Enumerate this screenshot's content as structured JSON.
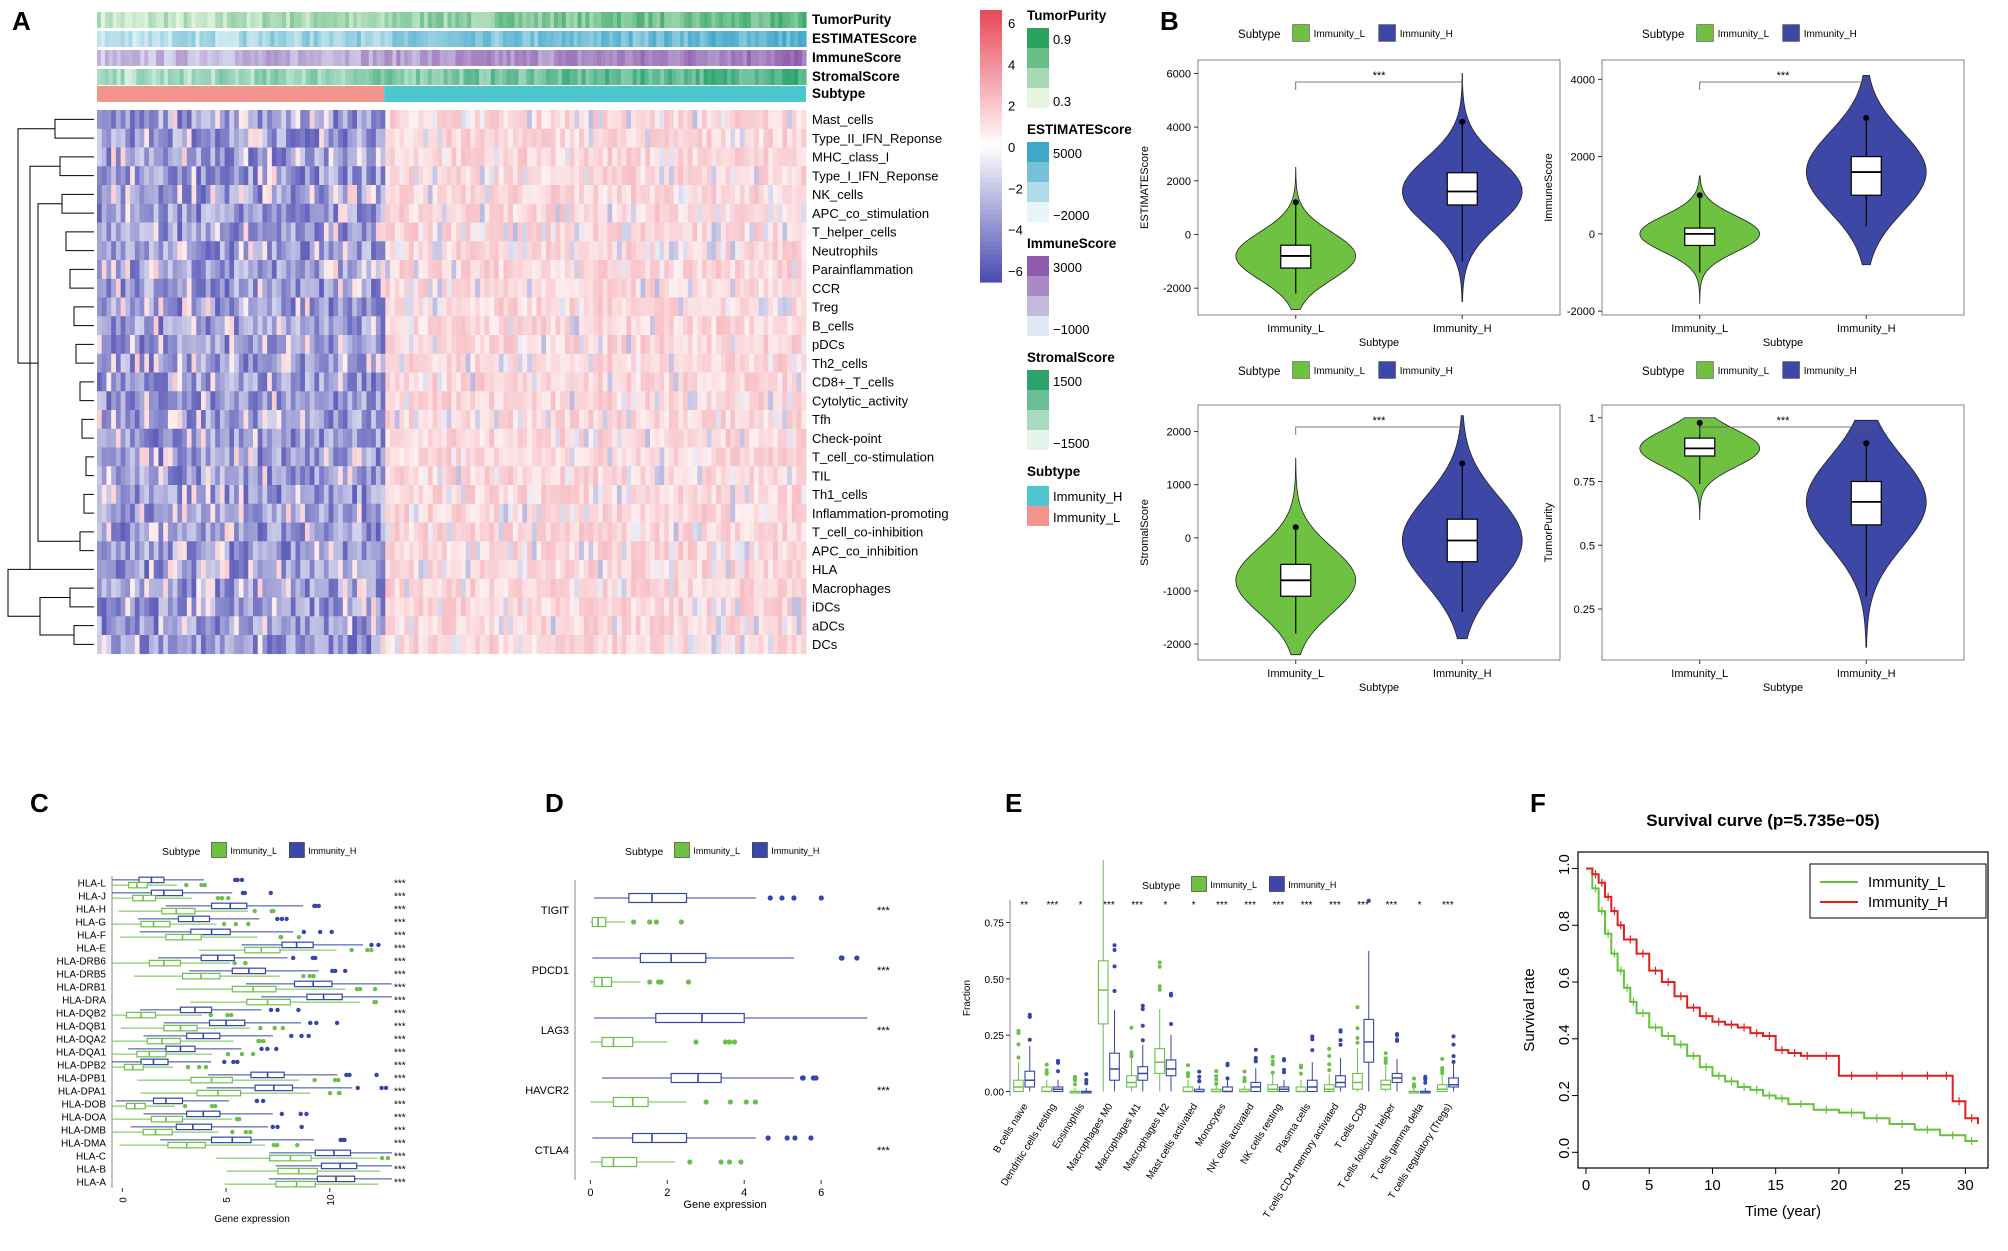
{
  "panels": {
    "A": "A",
    "B": "B",
    "C": "C",
    "D": "D",
    "E": "E",
    "F": "F"
  },
  "colors": {
    "low": "#4d4db3",
    "high": "#e84a5a",
    "immunity_L": "#6cc04a",
    "immunity_H": "#3646a8",
    "green_fill": "#6fc241",
    "blue_fill": "#3c47a6",
    "surv_L": "#66c23a",
    "surv_H": "#e02020"
  },
  "chart_data": [
    {
      "panel": "A",
      "type": "heatmap",
      "annotation_tracks": [
        "TumorPurity",
        "ESTIMATEScore",
        "ImmuneScore",
        "StromalScore",
        "Subtype"
      ],
      "rows": [
        "Mast_cells",
        "Type_II_IFN_Reponse",
        "MHC_class_I",
        "Type_I_IFN_Reponse",
        "NK_cells",
        "APC_co_stimulation",
        "T_helper_cells",
        "Neutrophils",
        "Parainflammation",
        "CCR",
        "Treg",
        "B_cells",
        "pDCs",
        "Th2_cells",
        "CD8+_T_cells",
        "Cytolytic_activity",
        "Tfh",
        "Check-point",
        "T_cell_co-stimulation",
        "TIL",
        "Th1_cells",
        "Inflammation-promoting",
        "T_cell_co-inhibition",
        "APC_co_inhibition",
        "HLA",
        "Macrophages",
        "iDCs",
        "aDCs",
        "DCs"
      ],
      "color_scale": {
        "ticks": [
          "6",
          "4",
          "2",
          "0",
          "−2",
          "−4",
          "−6"
        ],
        "range": [
          -6,
          6
        ]
      },
      "legends": [
        {
          "title": "TumorPurity",
          "labels": [
            "0.9",
            "0.3"
          ]
        },
        {
          "title": "ESTIMATEScore",
          "labels": [
            "5000",
            "−2000"
          ]
        },
        {
          "title": "ImmuneScore",
          "labels": [
            "3000",
            "−1000"
          ]
        },
        {
          "title": "StromalScore",
          "labels": [
            "1500",
            "−1500"
          ]
        },
        {
          "title": "Subtype",
          "labels": [
            "Immunity_H",
            "Immunity_L"
          ]
        }
      ],
      "group_split_fraction": 0.405
    },
    {
      "panel": "B",
      "type": "violin",
      "legend_title": "Subtype",
      "legend_items": [
        "Immunity_L",
        "Immunity_H"
      ],
      "xlabel": "Subtype",
      "categories": [
        "Immunity_L",
        "Immunity_H"
      ],
      "significance": "***",
      "subplots": [
        {
          "ylabel": "ESTIMATEScore",
          "ylim": [
            -3000,
            6500
          ],
          "yticks": [
            -2000,
            0,
            2000,
            4000,
            6000
          ],
          "groups": [
            {
              "q1": -1250,
              "median": -800,
              "q3": -400,
              "wlo": -2200,
              "whi": 1200,
              "vmin": -2800,
              "vmax": 2500
            },
            {
              "q1": 1100,
              "median": 1600,
              "q3": 2300,
              "wlo": -1000,
              "whi": 4200,
              "vmax": 6000,
              "vmin": -2500
            }
          ]
        },
        {
          "ylabel": "ImmuneScore",
          "ylim": [
            -2100,
            4500
          ],
          "yticks": [
            -2000,
            0,
            2000,
            4000
          ],
          "groups": [
            {
              "q1": -300,
              "median": 0,
              "q3": 150,
              "wlo": -1000,
              "whi": 1000,
              "vmin": -1800,
              "vmax": 1500
            },
            {
              "q1": 1000,
              "median": 1600,
              "q3": 2000,
              "wlo": 200,
              "whi": 3000,
              "vmin": -800,
              "vmax": 4100
            }
          ]
        },
        {
          "ylabel": "StromalScore",
          "ylim": [
            -2300,
            2500
          ],
          "yticks": [
            -2000,
            -1000,
            0,
            1000,
            2000
          ],
          "groups": [
            {
              "q1": -1100,
              "median": -800,
              "q3": -500,
              "wlo": -1800,
              "whi": 200,
              "vmin": -2200,
              "vmax": 1500
            },
            {
              "q1": -450,
              "median": -50,
              "q3": 350,
              "wlo": -1400,
              "whi": 1400,
              "vmin": -1900,
              "vmax": 2300
            }
          ]
        },
        {
          "ylabel": "TumorPurity",
          "ylim": [
            0.05,
            1.05
          ],
          "yticks": [
            0.25,
            0.5,
            0.75,
            1.0
          ],
          "groups": [
            {
              "q1": 0.85,
              "median": 0.88,
              "q3": 0.92,
              "wlo": 0.74,
              "whi": 0.98,
              "vmin": 0.6,
              "vmax": 1.0
            },
            {
              "q1": 0.58,
              "median": 0.67,
              "q3": 0.75,
              "wlo": 0.3,
              "whi": 0.9,
              "vmin": 0.1,
              "vmax": 0.99
            }
          ]
        }
      ]
    },
    {
      "panel": "C",
      "type": "boxplot-horizontal",
      "legend_title": "Subtype",
      "legend_items": [
        "Immunity_L",
        "Immunity_H"
      ],
      "xlabel": "Gene expression",
      "xlim": [
        -0.5,
        13
      ],
      "xticks": [
        0,
        5,
        10
      ],
      "categories": [
        "HLA-L",
        "HLA-J",
        "HLA-H",
        "HLA-G",
        "HLA-F",
        "HLA-E",
        "HLA-DRB6",
        "HLA-DRB5",
        "HLA-DRB1",
        "HLA-DRA",
        "HLA-DQB2",
        "HLA-DQB1",
        "HLA-DQA2",
        "HLA-DQA1",
        "HLA-DPB2",
        "HLA-DPB1",
        "HLA-DPA1",
        "HLA-DOB",
        "HLA-DOA",
        "HLA-DMB",
        "HLA-DMA",
        "HLA-C",
        "HLA-B",
        "HLA-A"
      ],
      "significance": "***",
      "boxes_H": [
        [
          0.8,
          1.4,
          2.0
        ],
        [
          1.4,
          2.0,
          2.9
        ],
        [
          4.3,
          5.2,
          6.0
        ],
        [
          2.7,
          3.4,
          4.2
        ],
        [
          3.3,
          4.3,
          5.2
        ],
        [
          7.7,
          8.4,
          9.2
        ],
        [
          3.8,
          4.6,
          5.4
        ],
        [
          5.3,
          6.1,
          6.9
        ],
        [
          8.3,
          9.2,
          10.1
        ],
        [
          8.9,
          9.7,
          10.6
        ],
        [
          2.8,
          3.5,
          4.3
        ],
        [
          4.2,
          5.0,
          5.9
        ],
        [
          3.1,
          3.9,
          4.7
        ],
        [
          2.1,
          2.8,
          3.5
        ],
        [
          0.9,
          1.5,
          2.2
        ],
        [
          6.2,
          7.0,
          7.8
        ],
        [
          6.4,
          7.3,
          8.2
        ],
        [
          1.5,
          2.1,
          2.9
        ],
        [
          3.1,
          3.9,
          4.7
        ],
        [
          2.6,
          3.4,
          4.3
        ],
        [
          4.3,
          5.3,
          6.2
        ],
        [
          9.3,
          10.2,
          11.0
        ],
        [
          9.6,
          10.5,
          11.3
        ],
        [
          9.4,
          10.3,
          11.2
        ]
      ],
      "boxes_L": [
        [
          0.3,
          0.7,
          1.2
        ],
        [
          0.5,
          1.0,
          1.6
        ],
        [
          1.9,
          2.6,
          3.5
        ],
        [
          0.9,
          1.5,
          2.3
        ],
        [
          2.1,
          2.9,
          3.8
        ],
        [
          5.9,
          6.7,
          7.6
        ],
        [
          1.3,
          2.0,
          2.8
        ],
        [
          2.9,
          3.8,
          4.7
        ],
        [
          5.3,
          6.3,
          7.4
        ],
        [
          6.0,
          7.0,
          8.1
        ],
        [
          0.2,
          0.9,
          1.6
        ],
        [
          2.0,
          2.8,
          3.6
        ],
        [
          1.2,
          1.9,
          2.8
        ],
        [
          0.7,
          1.3,
          2.1
        ],
        [
          0.1,
          0.5,
          1.0
        ],
        [
          3.3,
          4.3,
          5.3
        ],
        [
          3.6,
          4.6,
          5.7
        ],
        [
          0.2,
          0.6,
          1.1
        ],
        [
          1.4,
          2.1,
          2.9
        ],
        [
          1.0,
          1.6,
          2.4
        ],
        [
          2.2,
          3.1,
          4.0
        ],
        [
          7.1,
          8.1,
          9.1
        ],
        [
          7.5,
          8.5,
          9.4
        ],
        [
          7.4,
          8.4,
          9.3
        ]
      ]
    },
    {
      "panel": "D",
      "type": "boxplot-horizontal",
      "legend_title": "Subtype",
      "legend_items": [
        "Immunity_L",
        "Immunity_H"
      ],
      "xlabel": "Gene expression",
      "xlim": [
        -0.4,
        7.4
      ],
      "xticks": [
        0,
        2,
        4,
        6
      ],
      "categories": [
        "TIGIT",
        "PDCD1",
        "LAG3",
        "HAVCR2",
        "CTLA4"
      ],
      "significance": "***",
      "boxes_H": [
        [
          1.0,
          1.6,
          2.5
        ],
        [
          1.3,
          2.1,
          3.0
        ],
        [
          1.7,
          2.9,
          4.0
        ],
        [
          2.1,
          2.8,
          3.4
        ],
        [
          1.1,
          1.6,
          2.5
        ]
      ],
      "boxes_L": [
        [
          0.05,
          0.2,
          0.4
        ],
        [
          0.1,
          0.3,
          0.55
        ],
        [
          0.3,
          0.6,
          1.1
        ],
        [
          0.6,
          1.1,
          1.5
        ],
        [
          0.3,
          0.6,
          1.2
        ]
      ],
      "whiskers_H": [
        [
          0.1,
          4.3
        ],
        [
          0.05,
          5.3
        ],
        [
          0.1,
          7.2
        ],
        [
          0.3,
          5.3
        ],
        [
          0.05,
          4.3
        ]
      ],
      "whiskers_L": [
        [
          0,
          0.9
        ],
        [
          0,
          1.3
        ],
        [
          0,
          2.0
        ],
        [
          0,
          2.5
        ],
        [
          0,
          2.2
        ]
      ]
    },
    {
      "panel": "E",
      "type": "boxplot",
      "legend_title": "Subtype",
      "legend_items": [
        "Immunity_L",
        "Immunity_H"
      ],
      "ylabel": "Fraction",
      "ylim": [
        -0.02,
        0.85
      ],
      "yticks": [
        0.0,
        0.25,
        0.5,
        0.75
      ],
      "ytick_labels": [
        "0.00",
        "0.25",
        "0.50",
        "0.75"
      ],
      "categories": [
        "B cells naive",
        "Dendritic cells resting",
        "Eosinophils",
        "Macrophages M0",
        "Macrophages M1",
        "Macrophages M2",
        "Mast cells activated",
        "Monocytes",
        "NK cells activated",
        "NK cells resting",
        "Plasma cells",
        "T cells CD4 memory activated",
        "T cells CD8",
        "T cells follicular helper",
        "T cells gamma delta",
        "T cells regulatory (Tregs)"
      ],
      "significance": [
        "**",
        "***",
        "*",
        "***",
        "***",
        "*",
        "*",
        "***",
        "***",
        "***",
        "***",
        "***",
        "***",
        "***",
        "*",
        "***"
      ],
      "boxes_L": [
        [
          0.0,
          0.02,
          0.05
        ],
        [
          0.0,
          0.0,
          0.02
        ],
        [
          0.0,
          0.0,
          0.0
        ],
        [
          0.3,
          0.45,
          0.58
        ],
        [
          0.02,
          0.04,
          0.07
        ],
        [
          0.08,
          0.13,
          0.19
        ],
        [
          0.0,
          0.0,
          0.02
        ],
        [
          0.0,
          0.0,
          0.01
        ],
        [
          0.0,
          0.0,
          0.01
        ],
        [
          0.0,
          0.01,
          0.03
        ],
        [
          0.0,
          0.0,
          0.02
        ],
        [
          0.0,
          0.01,
          0.03
        ],
        [
          0.01,
          0.04,
          0.08
        ],
        [
          0.01,
          0.03,
          0.05
        ],
        [
          0.0,
          0.0,
          0.0
        ],
        [
          0.0,
          0.01,
          0.03
        ]
      ],
      "boxes_H": [
        [
          0.02,
          0.05,
          0.09
        ],
        [
          0.0,
          0.01,
          0.02
        ],
        [
          0.0,
          0.0,
          0.0
        ],
        [
          0.05,
          0.1,
          0.17
        ],
        [
          0.05,
          0.08,
          0.11
        ],
        [
          0.07,
          0.1,
          0.14
        ],
        [
          0.0,
          0.0,
          0.01
        ],
        [
          0.0,
          0.0,
          0.02
        ],
        [
          0.0,
          0.02,
          0.04
        ],
        [
          0.0,
          0.01,
          0.02
        ],
        [
          0.0,
          0.02,
          0.05
        ],
        [
          0.02,
          0.04,
          0.07
        ],
        [
          0.13,
          0.22,
          0.32
        ],
        [
          0.04,
          0.06,
          0.08
        ],
        [
          0.0,
          0.0,
          0.0
        ],
        [
          0.02,
          0.03,
          0.06
        ]
      ]
    },
    {
      "panel": "F",
      "type": "line",
      "title": "Survival curve (p=5.735e−05)",
      "xlabel": "Time (year)",
      "ylabel": "Survival rate",
      "xlim": [
        0,
        31
      ],
      "ylim": [
        -0.02,
        1.03
      ],
      "xticks": [
        0,
        5,
        10,
        15,
        20,
        25,
        30
      ],
      "yticks": [
        0.0,
        0.2,
        0.4,
        0.6,
        0.8,
        1.0
      ],
      "series": [
        {
          "name": "Immunity_L",
          "x": [
            0,
            0.5,
            1,
            1.5,
            2,
            2.5,
            3,
            3.5,
            4,
            5,
            6,
            7,
            8,
            9,
            10,
            11,
            12,
            13,
            14,
            15,
            16,
            18,
            20,
            22,
            24,
            26,
            28,
            30,
            31
          ],
          "y": [
            1.0,
            0.93,
            0.85,
            0.77,
            0.7,
            0.64,
            0.58,
            0.53,
            0.49,
            0.44,
            0.41,
            0.38,
            0.34,
            0.3,
            0.27,
            0.25,
            0.23,
            0.22,
            0.2,
            0.19,
            0.17,
            0.15,
            0.14,
            0.12,
            0.1,
            0.08,
            0.06,
            0.04,
            0.04
          ]
        },
        {
          "name": "Immunity_H",
          "x": [
            0,
            0.5,
            1,
            1.5,
            2,
            2.5,
            3,
            4,
            5,
            6,
            7,
            8,
            9,
            10,
            11,
            12,
            13,
            14,
            15,
            16,
            17,
            18,
            20,
            22,
            24,
            26,
            28,
            29,
            30,
            31
          ],
          "y": [
            1.0,
            0.98,
            0.95,
            0.9,
            0.85,
            0.8,
            0.75,
            0.7,
            0.64,
            0.6,
            0.55,
            0.51,
            0.48,
            0.46,
            0.45,
            0.44,
            0.42,
            0.41,
            0.36,
            0.35,
            0.34,
            0.34,
            0.27,
            0.27,
            0.27,
            0.27,
            0.27,
            0.18,
            0.12,
            0.1
          ]
        }
      ]
    }
  ]
}
